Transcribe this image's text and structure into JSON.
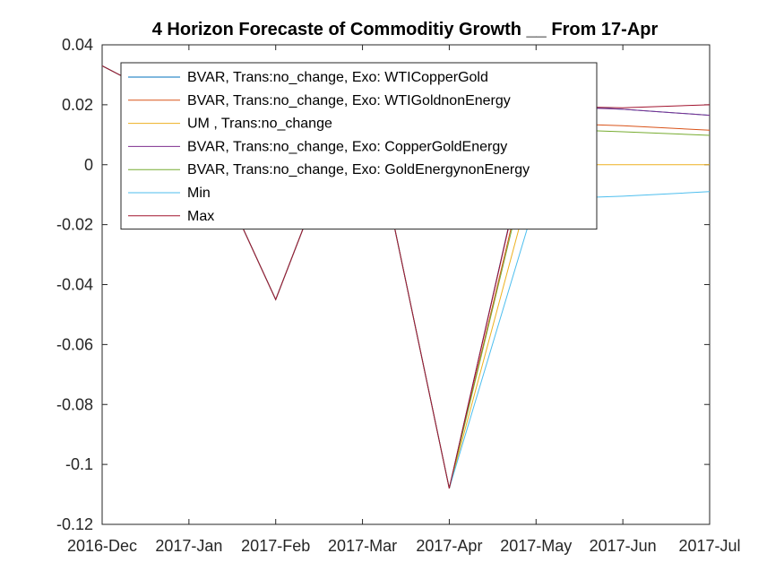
{
  "chart_data": {
    "type": "line",
    "title": "4 Horizon Forecaste of Commoditiy Growth __ From 17-Apr",
    "xlabel": "",
    "ylabel": "",
    "x": [
      "2016-Dec",
      "2017-Jan",
      "2017-Feb",
      "2017-Mar",
      "2017-Apr",
      "2017-May",
      "2017-Jun",
      "2017-Jul"
    ],
    "ylim": [
      -0.12,
      0.04
    ],
    "yticks": [
      "0.04",
      "0.02",
      "0",
      "-0.02",
      "-0.04",
      "-0.06",
      "-0.08",
      "-0.1",
      "-0.12"
    ],
    "grid": false,
    "legend_position": "top-left",
    "series": [
      {
        "name": "BVAR, Trans:no_change, Exo: WTICopperGold",
        "color": "#0072BD",
        "values": [
          0.033,
          0.018,
          -0.045,
          0.03,
          -0.108,
          0.02,
          0.0185,
          0.0165
        ]
      },
      {
        "name": "BVAR, Trans:no_change, Exo: WTIGoldnonEnergy",
        "color": "#D95319",
        "values": [
          0.033,
          0.018,
          -0.045,
          0.03,
          -0.108,
          0.014,
          0.013,
          0.0115
        ]
      },
      {
        "name": "UM , Trans:no_change",
        "color": "#EDB120",
        "values": [
          0.033,
          0.018,
          -0.045,
          0.03,
          -0.108,
          0.0,
          0.0,
          0.0
        ]
      },
      {
        "name": "BVAR, Trans:no_change, Exo: CopperGoldEnergy",
        "color": "#7E2F8E",
        "values": [
          0.033,
          0.018,
          -0.045,
          0.03,
          -0.108,
          0.0195,
          0.0185,
          0.0165
        ]
      },
      {
        "name": "BVAR, Trans:no_change, Exo: GoldEnergynonEnergy",
        "color": "#77AC30",
        "values": [
          0.033,
          0.018,
          -0.045,
          0.03,
          -0.108,
          0.012,
          0.011,
          0.0098
        ]
      },
      {
        "name": "Min",
        "color": "#4DBEEE",
        "values": [
          0.033,
          0.018,
          -0.045,
          0.03,
          -0.108,
          -0.0115,
          -0.0105,
          -0.009
        ]
      },
      {
        "name": "Max",
        "color": "#A2142F",
        "values": [
          0.033,
          0.018,
          -0.045,
          0.03,
          -0.108,
          0.0195,
          0.019,
          0.02
        ]
      }
    ]
  }
}
